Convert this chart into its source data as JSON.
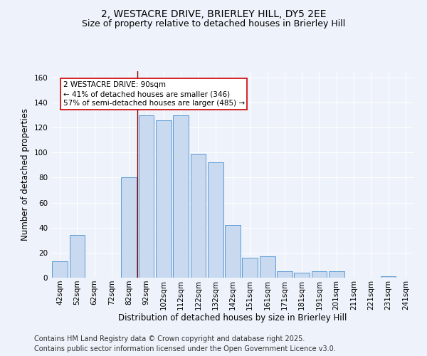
{
  "title_line1": "2, WESTACRE DRIVE, BRIERLEY HILL, DY5 2EE",
  "title_line2": "Size of property relative to detached houses in Brierley Hill",
  "xlabel": "Distribution of detached houses by size in Brierley Hill",
  "ylabel": "Number of detached properties",
  "bar_labels": [
    "42sqm",
    "52sqm",
    "62sqm",
    "72sqm",
    "82sqm",
    "92sqm",
    "102sqm",
    "112sqm",
    "122sqm",
    "132sqm",
    "142sqm",
    "151sqm",
    "161sqm",
    "171sqm",
    "181sqm",
    "191sqm",
    "201sqm",
    "211sqm",
    "221sqm",
    "231sqm",
    "241sqm"
  ],
  "bar_values": [
    13,
    34,
    0,
    0,
    80,
    130,
    126,
    130,
    99,
    92,
    42,
    16,
    17,
    5,
    4,
    5,
    5,
    0,
    0,
    1,
    0
  ],
  "bar_color": "#c8d9f0",
  "bar_edge_color": "#5b9bd5",
  "annotation_text": "2 WESTACRE DRIVE: 90sqm\n← 41% of detached houses are smaller (346)\n57% of semi-detached houses are larger (485) →",
  "annotation_box_color": "#ffffff",
  "annotation_box_edge_color": "#cc0000",
  "vline_color": "#8b0000",
  "ylim": [
    0,
    165
  ],
  "yticks": [
    0,
    20,
    40,
    60,
    80,
    100,
    120,
    140,
    160
  ],
  "footnote_line1": "Contains HM Land Registry data © Crown copyright and database right 2025.",
  "footnote_line2": "Contains public sector information licensed under the Open Government Licence v3.0.",
  "background_color": "#eef2fa",
  "grid_color": "#ffffff",
  "title_fontsize": 10,
  "subtitle_fontsize": 9,
  "axis_label_fontsize": 8.5,
  "tick_fontsize": 7.5,
  "annotation_fontsize": 7.5,
  "footnote_fontsize": 7
}
